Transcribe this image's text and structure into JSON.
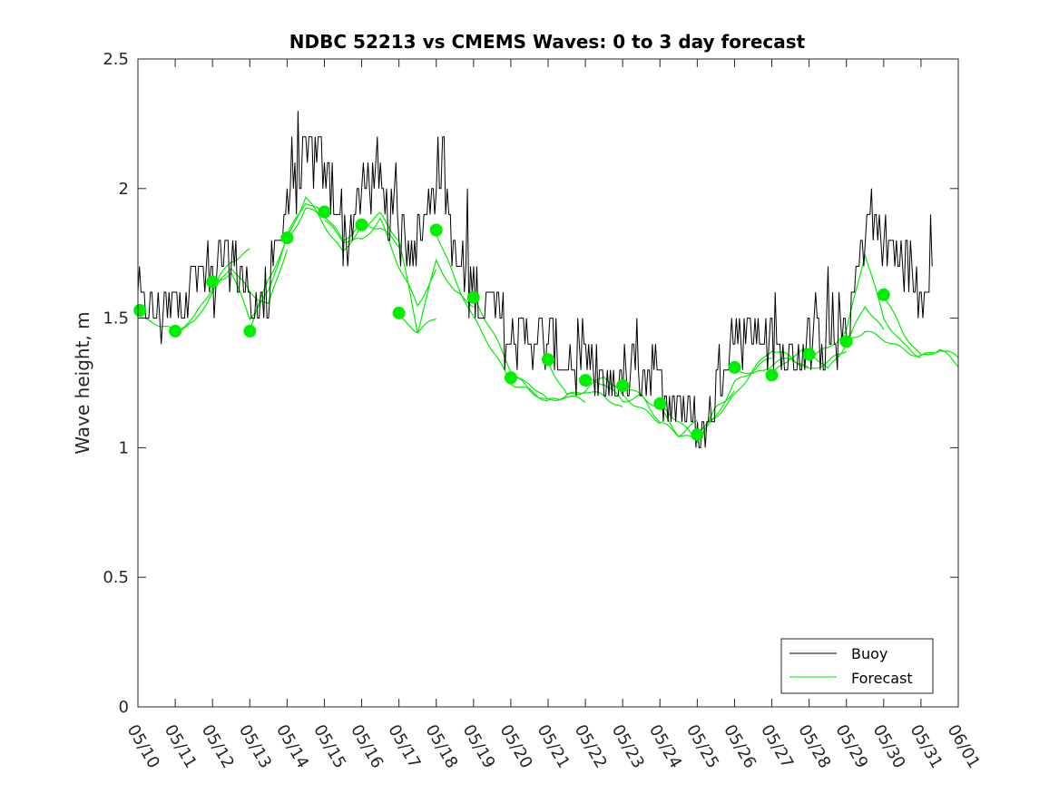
{
  "chart_data": {
    "type": "line",
    "title": "NDBC 52213 vs CMEMS Waves: 0 to 3 day forecast",
    "xlabel": "",
    "ylabel": "Wave height, m",
    "ylim": [
      0,
      2.5
    ],
    "xlim": [
      0,
      22
    ],
    "yticks": [
      0,
      0.5,
      1,
      1.5,
      2,
      2.5
    ],
    "ytick_labels": [
      "0",
      "0.5",
      "1",
      "1.5",
      "2",
      "2.5"
    ],
    "xtick_labels": [
      "05/10",
      "05/11",
      "05/12",
      "05/13",
      "05/14",
      "05/15",
      "05/16",
      "05/17",
      "05/18",
      "05/19",
      "05/20",
      "05/21",
      "05/22",
      "05/23",
      "05/24",
      "05/25",
      "05/26",
      "05/27",
      "05/28",
      "05/29",
      "05/30",
      "05/31",
      "06/01"
    ],
    "x_unit": "days since 05/10",
    "grid": false,
    "legend": {
      "position": "bottom-right",
      "entries": [
        "Buoy",
        "Forecast"
      ]
    },
    "colors": {
      "buoy": "#000000",
      "forecast": "#00ee00"
    },
    "series": [
      {
        "name": "Buoy",
        "x": [
          0,
          0.5,
          1,
          1.3,
          1.5,
          2,
          2.3,
          2.6,
          3,
          3.5,
          4,
          4.3,
          4.6,
          5,
          5.3,
          5.6,
          6,
          6.3,
          6.6,
          7,
          7.5,
          8,
          8.2,
          8.5,
          9,
          9.5,
          10,
          10.5,
          11,
          11.5,
          12,
          12.5,
          13,
          13.5,
          14,
          14.5,
          15,
          15.3,
          15.6,
          16,
          16.5,
          17,
          17.5,
          18,
          18.5,
          19,
          19.3,
          19.6,
          20,
          20.3,
          20.6,
          21,
          21.3
        ],
        "values": [
          1.55,
          1.5,
          1.55,
          1.6,
          1.65,
          1.65,
          1.7,
          1.75,
          1.55,
          1.6,
          1.95,
          2.05,
          2.15,
          2.05,
          1.95,
          1.8,
          1.95,
          2.05,
          1.9,
          1.85,
          1.8,
          2.05,
          2.1,
          1.7,
          1.6,
          1.55,
          1.4,
          1.45,
          1.4,
          1.3,
          1.3,
          1.25,
          1.25,
          1.3,
          1.25,
          1.2,
          1.05,
          1.1,
          1.3,
          1.45,
          1.45,
          1.4,
          1.35,
          1.4,
          1.45,
          1.45,
          1.7,
          1.9,
          1.8,
          1.75,
          1.75,
          1.6,
          1.75
        ]
      },
      {
        "name": "Forecast",
        "runs": [
          {
            "x": [
              0,
              0.5,
              1,
              1.5,
              2,
              2.5,
              3
            ],
            "values": [
              1.5,
              1.48,
              1.45,
              1.5,
              1.62,
              1.72,
              1.76
            ]
          },
          {
            "x": [
              1,
              1.5,
              2,
              2.5,
              3,
              3.5,
              4
            ],
            "values": [
              1.45,
              1.48,
              1.6,
              1.7,
              1.6,
              1.55,
              1.77
            ]
          },
          {
            "x": [
              2,
              2.5,
              3,
              3.5,
              4,
              4.5,
              5
            ],
            "values": [
              1.62,
              1.68,
              1.5,
              1.6,
              1.82,
              1.95,
              1.9
            ]
          },
          {
            "x": [
              3,
              3.5,
              4,
              4.5,
              5,
              5.5,
              6
            ],
            "values": [
              1.46,
              1.65,
              1.8,
              1.97,
              1.86,
              1.75,
              1.86
            ]
          },
          {
            "x": [
              4,
              4.5,
              5,
              5.5,
              6,
              6.5,
              7
            ],
            "values": [
              1.8,
              1.92,
              1.9,
              1.8,
              1.86,
              1.85,
              1.78
            ]
          },
          {
            "x": [
              5,
              5.5,
              6,
              6.5,
              7,
              7.5,
              8
            ],
            "values": [
              1.88,
              1.8,
              1.8,
              1.88,
              1.7,
              1.55,
              1.68
            ]
          },
          {
            "x": [
              6,
              6.5,
              7,
              7.5,
              8,
              8.5,
              9
            ],
            "values": [
              1.85,
              1.9,
              1.8,
              1.45,
              1.72,
              1.6,
              1.55
            ]
          },
          {
            "x": [
              7,
              7.5,
              8
            ],
            "values": [
              1.5,
              1.45,
              1.5
            ]
          },
          {
            "x": [
              8,
              8.5,
              9,
              9.5,
              10,
              10.5,
              11
            ],
            "values": [
              1.83,
              1.65,
              1.5,
              1.38,
              1.25,
              1.22,
              1.18
            ]
          },
          {
            "x": [
              9,
              9.5,
              10,
              10.5,
              11,
              11.5,
              12
            ],
            "values": [
              1.58,
              1.45,
              1.3,
              1.22,
              1.18,
              1.2,
              1.18
            ]
          },
          {
            "x": [
              10,
              10.5,
              11,
              11.5,
              12,
              12.5,
              13
            ],
            "values": [
              1.27,
              1.25,
              1.18,
              1.2,
              1.22,
              1.2,
              1.15
            ]
          },
          {
            "x": [
              11,
              11.5,
              12,
              12.5,
              13,
              13.5,
              14
            ],
            "values": [
              1.33,
              1.2,
              1.22,
              1.28,
              1.2,
              1.15,
              1.1
            ]
          },
          {
            "x": [
              12,
              12.5,
              13,
              13.5,
              14,
              14.5,
              15
            ],
            "values": [
              1.26,
              1.25,
              1.18,
              1.2,
              1.1,
              1.05,
              1.1
            ]
          },
          {
            "x": [
              13,
              13.5,
              14,
              14.5,
              15,
              15.5,
              16
            ],
            "values": [
              1.24,
              1.2,
              1.15,
              1.05,
              1.03,
              1.15,
              1.22
            ]
          },
          {
            "x": [
              14,
              14.5,
              15,
              15.5,
              16,
              16.5,
              17
            ],
            "values": [
              1.17,
              1.1,
              1.03,
              1.12,
              1.25,
              1.3,
              1.35
            ]
          },
          {
            "x": [
              15,
              15.5,
              16,
              16.5,
              17,
              17.5,
              18
            ],
            "values": [
              1.05,
              1.12,
              1.2,
              1.3,
              1.38,
              1.35,
              1.3
            ]
          },
          {
            "x": [
              16,
              16.5,
              17,
              17.5,
              18,
              18.5,
              19
            ],
            "values": [
              1.31,
              1.28,
              1.32,
              1.35,
              1.3,
              1.33,
              1.38
            ]
          },
          {
            "x": [
              17,
              17.5,
              18,
              18.5,
              19,
              19.5,
              20
            ],
            "values": [
              1.28,
              1.35,
              1.38,
              1.3,
              1.4,
              1.55,
              1.45
            ]
          },
          {
            "x": [
              18,
              18.5,
              19,
              19.5,
              20,
              20.5,
              21
            ],
            "values": [
              1.36,
              1.38,
              1.45,
              1.75,
              1.5,
              1.4,
              1.35
            ]
          },
          {
            "x": [
              19,
              19.5,
              20,
              20.5,
              21,
              21.5,
              22
            ],
            "values": [
              1.41,
              1.45,
              1.42,
              1.38,
              1.35,
              1.38,
              1.35
            ]
          },
          {
            "x": [
              20,
              20.5,
              21,
              21.5,
              22
            ],
            "values": [
              1.59,
              1.45,
              1.35,
              1.38,
              1.32
            ]
          }
        ]
      }
    ],
    "forecast_points": {
      "x": [
        0.05,
        1,
        2,
        3,
        4,
        5,
        6,
        7,
        8,
        9,
        10,
        11,
        12,
        13,
        14,
        15,
        16,
        17,
        18,
        19,
        20
      ],
      "values": [
        1.53,
        1.45,
        1.64,
        1.45,
        1.81,
        1.91,
        1.86,
        1.52,
        1.84,
        1.58,
        1.27,
        1.34,
        1.26,
        1.24,
        1.17,
        1.05,
        1.31,
        1.28,
        1.36,
        1.41,
        1.59
      ]
    }
  }
}
